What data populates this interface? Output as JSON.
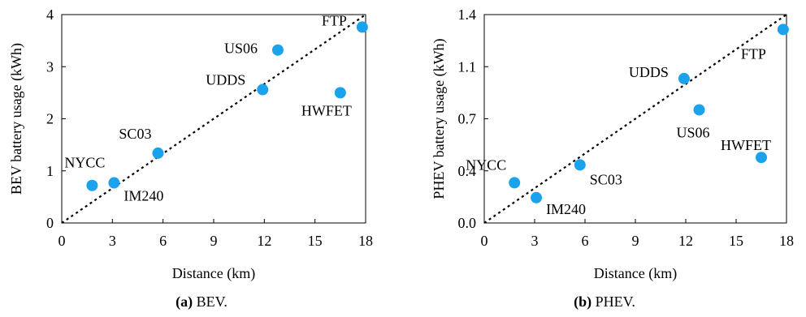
{
  "chart_data": [
    {
      "type": "scatter",
      "xlabel": "Distance (km)",
      "ylabel": "BEV battery usage (kWh)",
      "xlim": [
        0,
        18
      ],
      "ylim": [
        0,
        4
      ],
      "xticks": [
        "0",
        "3",
        "6",
        "9",
        "12",
        "15",
        "18"
      ],
      "yticks": [
        "0",
        "1",
        "2",
        "3",
        "4"
      ],
      "marker_color": "#1aa3ec",
      "trend_line": {
        "style": "dotted",
        "from": [
          0,
          0
        ],
        "to": [
          18,
          4
        ]
      },
      "points": [
        {
          "label": "NYCC",
          "x": 1.8,
          "y": 0.72
        },
        {
          "label": "IM240",
          "x": 3.1,
          "y": 0.77
        },
        {
          "label": "SC03",
          "x": 5.7,
          "y": 1.34
        },
        {
          "label": "UDDS",
          "x": 11.9,
          "y": 2.56
        },
        {
          "label": "US06",
          "x": 12.8,
          "y": 3.32
        },
        {
          "label": "HWFET",
          "x": 16.5,
          "y": 2.5
        },
        {
          "label": "FTP",
          "x": 17.8,
          "y": 3.76
        }
      ],
      "caption_prefix": "(a)",
      "caption_text": "BEV."
    },
    {
      "type": "scatter",
      "xlabel": "Distance (km)",
      "ylabel": "PHEV battery usage (kWh)",
      "xlim": [
        0,
        18
      ],
      "ylim": [
        0,
        1.4
      ],
      "xticks": [
        "0",
        "3",
        "6",
        "9",
        "12",
        "15",
        "18"
      ],
      "yticks": [
        "0.0",
        "0.4",
        "0.7",
        "1.1",
        "1.4"
      ],
      "marker_color": "#1aa3ec",
      "trend_line": {
        "style": "dotted",
        "from": [
          0,
          0
        ],
        "to": [
          18,
          1.4
        ]
      },
      "points": [
        {
          "label": "NYCC",
          "x": 1.8,
          "y": 0.27
        },
        {
          "label": "IM240",
          "x": 3.1,
          "y": 0.17
        },
        {
          "label": "SC03",
          "x": 5.7,
          "y": 0.39
        },
        {
          "label": "UDDS",
          "x": 11.9,
          "y": 0.97
        },
        {
          "label": "US06",
          "x": 12.8,
          "y": 0.76
        },
        {
          "label": "HWFET",
          "x": 16.5,
          "y": 0.44
        },
        {
          "label": "FTP",
          "x": 17.8,
          "y": 1.3
        }
      ],
      "caption_prefix": "(b)",
      "caption_text": "PHEV."
    }
  ]
}
